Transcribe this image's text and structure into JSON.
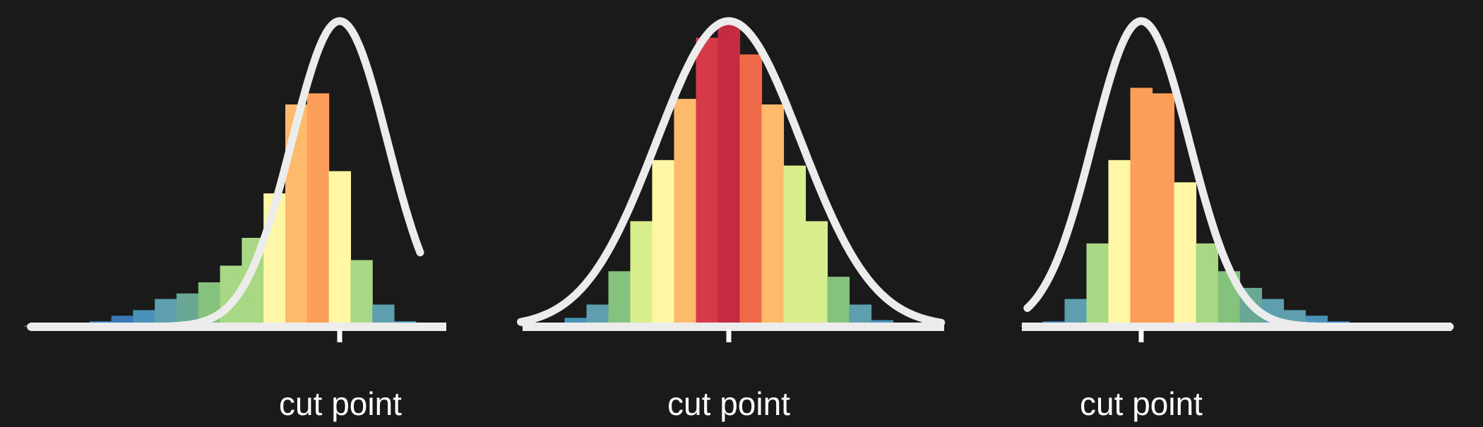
{
  "colors": {
    "background": "#1a1a1a",
    "curve": "#ececec",
    "baseline": "#ececec",
    "tick": "#ffffff",
    "palette": [
      "#3a78b6",
      "#4a92b8",
      "#5e9faf",
      "#6aa896",
      "#84c27e",
      "#a8d884",
      "#d9ef8e",
      "#fff6a6",
      "#fdba6c",
      "#fb9e5a",
      "#ef6a48",
      "#d63a48",
      "#c42a40"
    ]
  },
  "chart_data": [
    {
      "type": "bar",
      "description_label": "left-skewed",
      "x": [
        -14,
        -13,
        -12,
        -11,
        -10,
        -9,
        -8,
        -7,
        -6,
        -5,
        -4,
        -3,
        -2,
        -1,
        0,
        1,
        2,
        3
      ],
      "values": [
        0.1,
        0.2,
        0.3,
        0.5,
        1,
        1.5,
        2.5,
        3,
        4,
        5.5,
        8,
        12,
        20,
        21,
        14,
        6,
        2,
        0.5
      ],
      "bar_colors": [
        0,
        0,
        0,
        0,
        0,
        1,
        2,
        3,
        4,
        5,
        5,
        7,
        8,
        9,
        7,
        5,
        2,
        1
      ],
      "ylim": [
        0,
        28
      ],
      "curve": {
        "type": "normal",
        "mean": 0,
        "sd": 2.2,
        "peak": 27.5
      },
      "cut_point": 0,
      "xlabel": "cut point"
    },
    {
      "type": "bar",
      "description_label": "symmetric",
      "x": [
        -9,
        -8,
        -7,
        -6,
        -5,
        -4,
        -3,
        -2,
        -1,
        0,
        1,
        2,
        3,
        4,
        5,
        6,
        7,
        8,
        9
      ],
      "values": [
        0.1,
        0.3,
        0.8,
        2,
        5,
        9.5,
        15,
        20.5,
        26,
        27.5,
        24.5,
        20,
        14.5,
        9.5,
        4.5,
        2,
        0.6,
        0.2,
        0.1
      ],
      "bar_colors": [
        0,
        0,
        1,
        2,
        4,
        6,
        7,
        8,
        11,
        12,
        10,
        8,
        6,
        6,
        4,
        2,
        1,
        0,
        0
      ],
      "ylim": [
        0,
        28
      ],
      "curve": {
        "type": "normal",
        "mean": 0,
        "sd": 3.3,
        "peak": 27.5
      },
      "cut_point": 0,
      "xlabel": "cut point"
    },
    {
      "type": "bar",
      "description_label": "right-skewed",
      "x": [
        -5,
        -4,
        -3,
        -2,
        -1,
        0,
        1,
        2,
        3,
        4,
        5,
        6,
        7,
        8,
        9,
        10,
        11,
        12
      ],
      "values": [
        0.1,
        0.5,
        2.5,
        7.5,
        15,
        21.5,
        21,
        13,
        7.5,
        5,
        3.5,
        2.5,
        1.5,
        1,
        0.5,
        0.3,
        0.1,
        0.1
      ],
      "bar_colors": [
        0,
        0,
        2,
        5,
        7,
        9,
        9,
        7,
        5,
        4,
        3,
        2,
        2,
        1,
        0,
        0,
        0,
        0
      ],
      "ylim": [
        0,
        28
      ],
      "curve": {
        "type": "normal",
        "mean": 0,
        "sd": 2.2,
        "peak": 27.5
      },
      "cut_point": 0,
      "xlabel": "cut point"
    }
  ]
}
